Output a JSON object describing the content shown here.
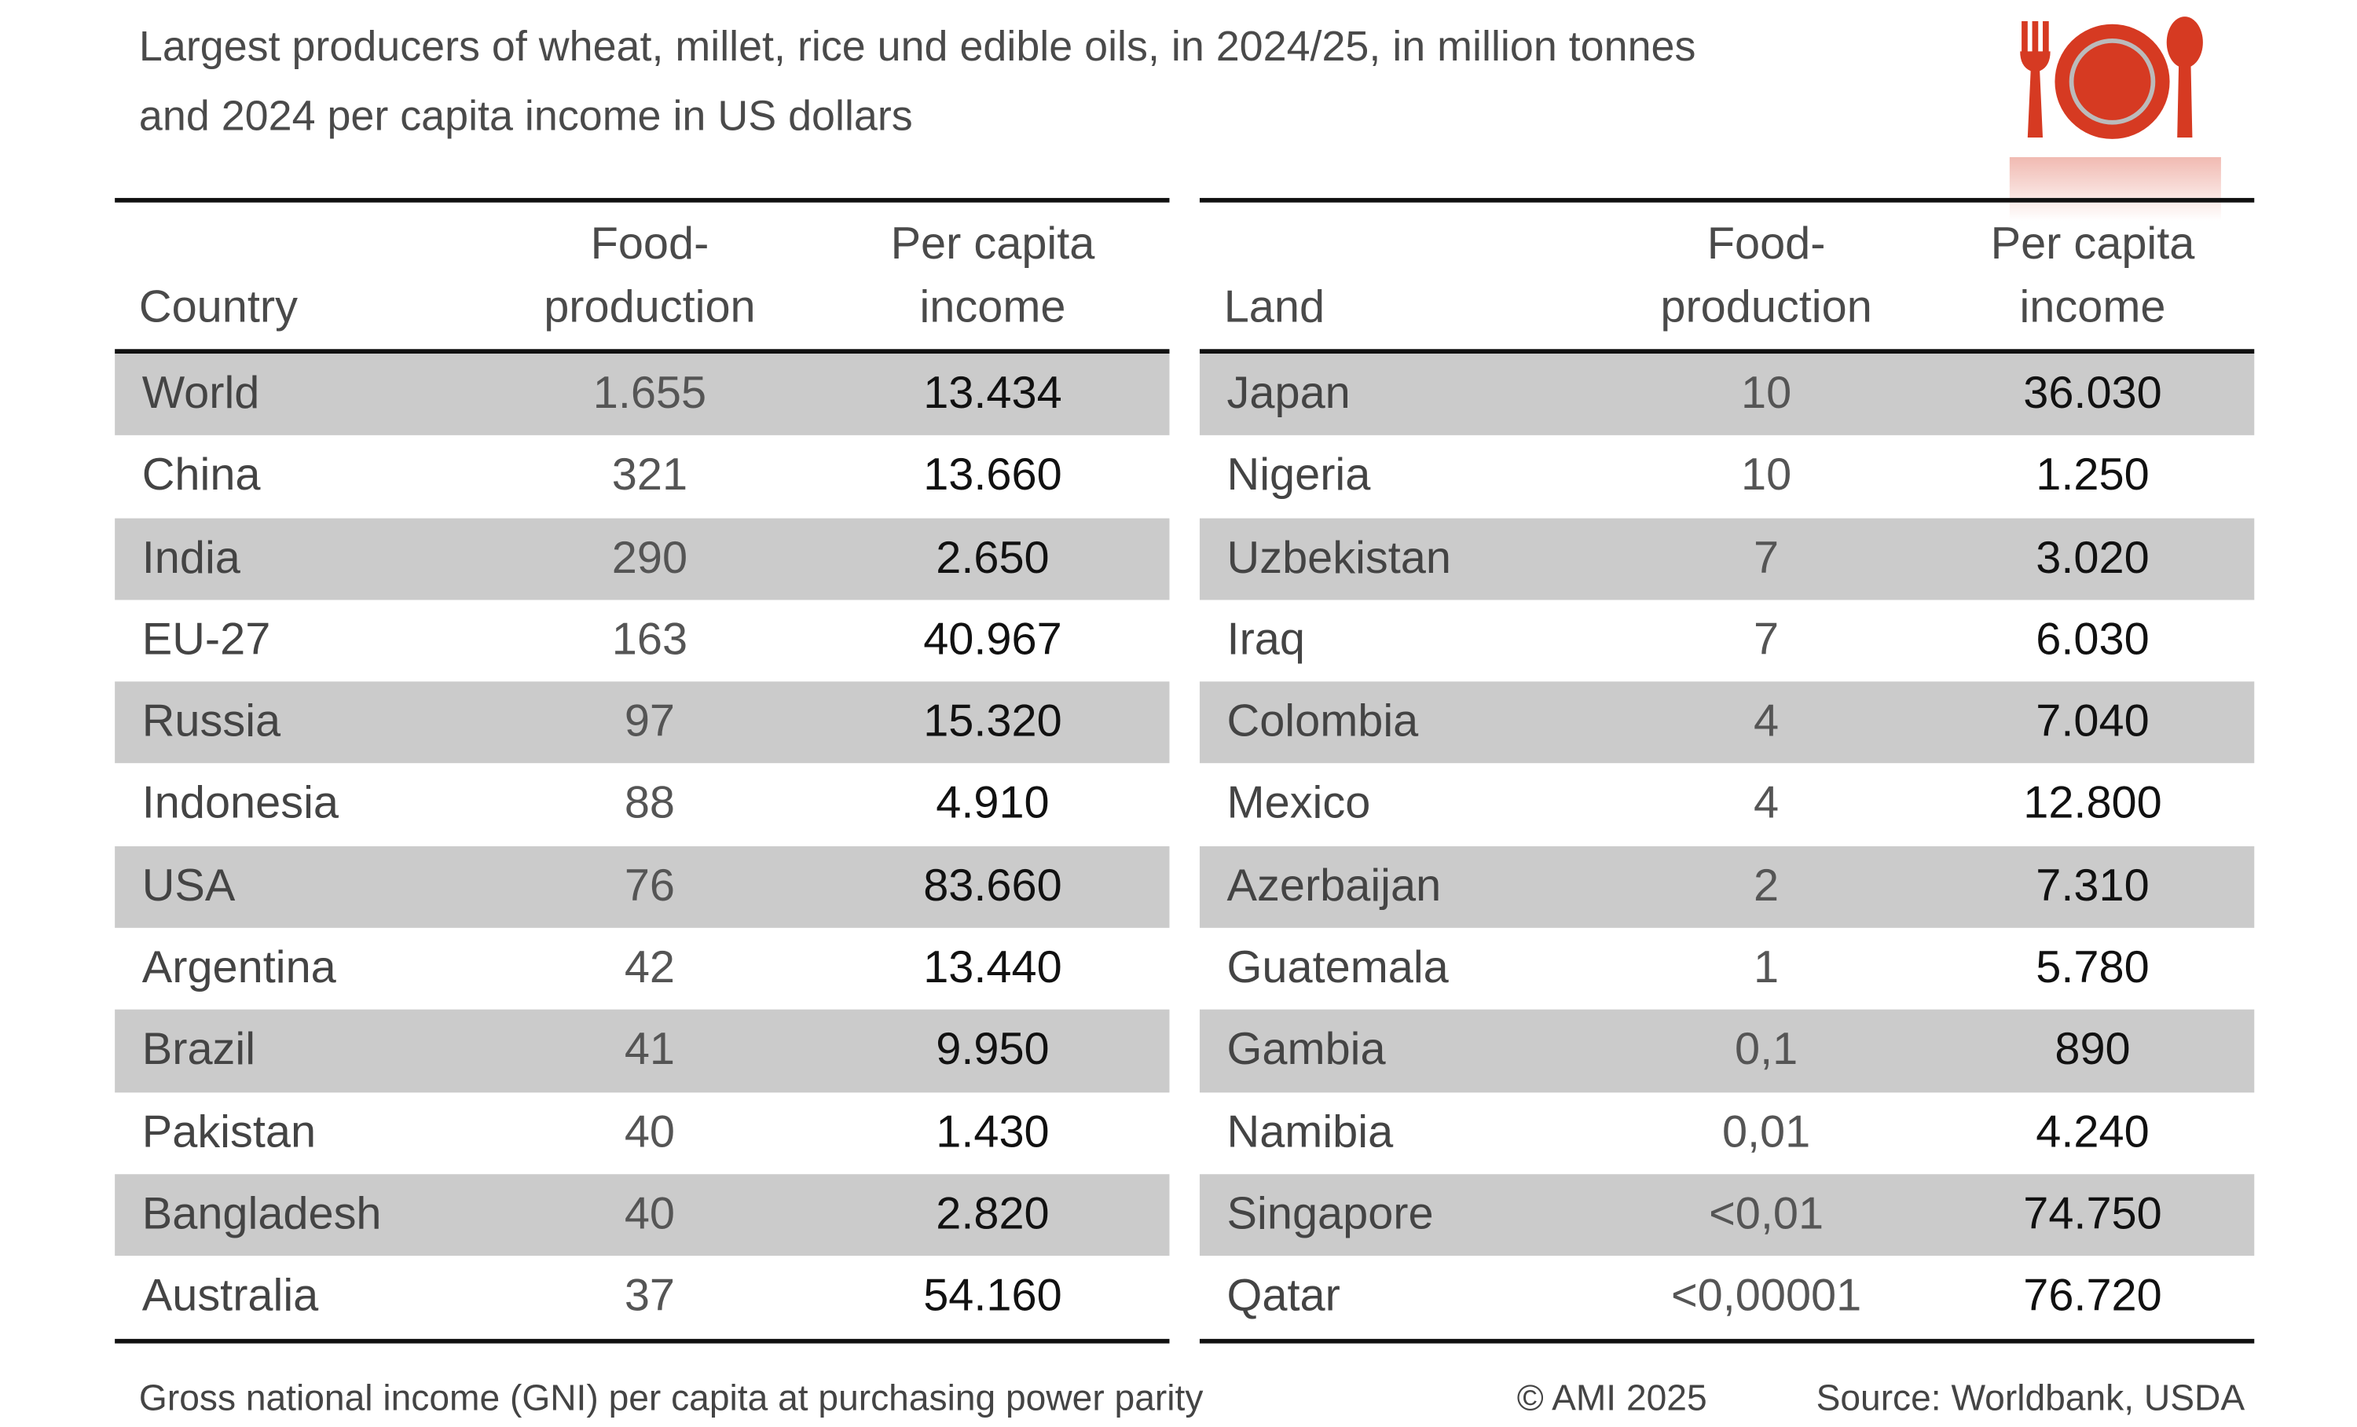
{
  "title_line1": "Largest producers of wheat, millet, rice und edible oils, in 2024/25, in million tonnes",
  "title_line2": "and 2024 per capita income in US dollars",
  "icon": "plate-fork-spoon-icon",
  "colors": {
    "accent": "#d63a22",
    "row_shade": "#cbcbcb"
  },
  "left_table": {
    "headers": {
      "name": "Country",
      "food_1": "Food-",
      "food_2": "production",
      "income_1": "Per capita",
      "income_2": "income"
    },
    "rows": [
      {
        "name": "World",
        "food": "1.655",
        "income": "13.434"
      },
      {
        "name": "China",
        "food": "321",
        "income": "13.660"
      },
      {
        "name": "India",
        "food": "290",
        "income": "2.650"
      },
      {
        "name": "EU-27",
        "food": "163",
        "income": "40.967"
      },
      {
        "name": "Russia",
        "food": "97",
        "income": "15.320"
      },
      {
        "name": "Indonesia",
        "food": "88",
        "income": "4.910"
      },
      {
        "name": "USA",
        "food": "76",
        "income": "83.660"
      },
      {
        "name": "Argentina",
        "food": "42",
        "income": "13.440"
      },
      {
        "name": "Brazil",
        "food": "41",
        "income": "9.950"
      },
      {
        "name": "Pakistan",
        "food": "40",
        "income": "1.430"
      },
      {
        "name": "Bangladesh",
        "food": "40",
        "income": "2.820"
      },
      {
        "name": "Australia",
        "food": "37",
        "income": "54.160"
      }
    ]
  },
  "right_table": {
    "headers": {
      "name": "Land",
      "food_1": "Food-",
      "food_2": "production",
      "income_1": "Per capita",
      "income_2": "income"
    },
    "rows": [
      {
        "name": "Japan",
        "food": "10",
        "income": "36.030"
      },
      {
        "name": "Nigeria",
        "food": "10",
        "income": "1.250"
      },
      {
        "name": "Uzbekistan",
        "food": "7",
        "income": "3.020"
      },
      {
        "name": "Iraq",
        "food": "7",
        "income": "6.030"
      },
      {
        "name": "Colombia",
        "food": "4",
        "income": "7.040"
      },
      {
        "name": "Mexico",
        "food": "4",
        "income": "12.800"
      },
      {
        "name": "Azerbaijan",
        "food": "2",
        "income": "7.310"
      },
      {
        "name": "Guatemala",
        "food": "1",
        "income": "5.780"
      },
      {
        "name": "Gambia",
        "food": "0,1",
        "income": "890"
      },
      {
        "name": "Namibia",
        "food": "0,01",
        "income": "4.240"
      },
      {
        "name": "Singapore",
        "food": "<0,01",
        "income": "74.750"
      },
      {
        "name": "Qatar",
        "food": "<0,00001",
        "income": "76.720"
      }
    ]
  },
  "footer": {
    "note": "Gross national income (GNI) per capita at purchasing power parity",
    "copyright": "© AMI 2025",
    "source": "Source: Worldbank, USDA"
  }
}
